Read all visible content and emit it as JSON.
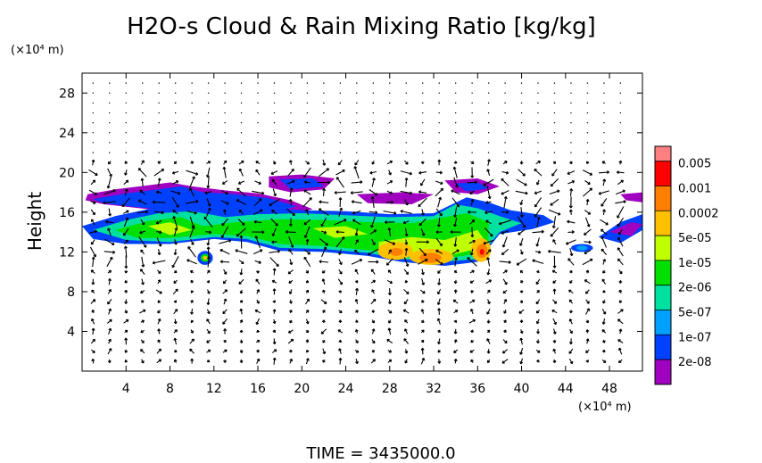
{
  "chart_data": {
    "type": "heatmap",
    "title": "H2O-s Cloud & Rain Mixing Ratio [kg/kg]",
    "ylabel": "Height",
    "y_unit": "(×10⁴ m)",
    "x_unit": "(×10⁴ m)",
    "xlim": [
      0,
      51
    ],
    "ylim": [
      0,
      30
    ],
    "x_ticks": [
      "4",
      "8",
      "12",
      "16",
      "20",
      "24",
      "28",
      "32",
      "36",
      "40",
      "44",
      "48"
    ],
    "y_ticks": [
      "4",
      "8",
      "12",
      "16",
      "20",
      "24",
      "28"
    ],
    "legend": {
      "labels": [
        "0.005",
        "0.001",
        "0.0002",
        "5e-05",
        "1e-05",
        "2e-06",
        "5e-07",
        "1e-07",
        "2e-08"
      ],
      "colors": [
        "#ff0000",
        "#ff8000",
        "#ffc000",
        "#c0ff00",
        "#00e000",
        "#00e0a0",
        "#00a0ff",
        "#0040ff",
        "#a000c0"
      ],
      "top_color": "#ff8080",
      "placement": "right"
    },
    "overlay": "wind vector arrows",
    "footer": "TIME  =  3435000.0"
  }
}
